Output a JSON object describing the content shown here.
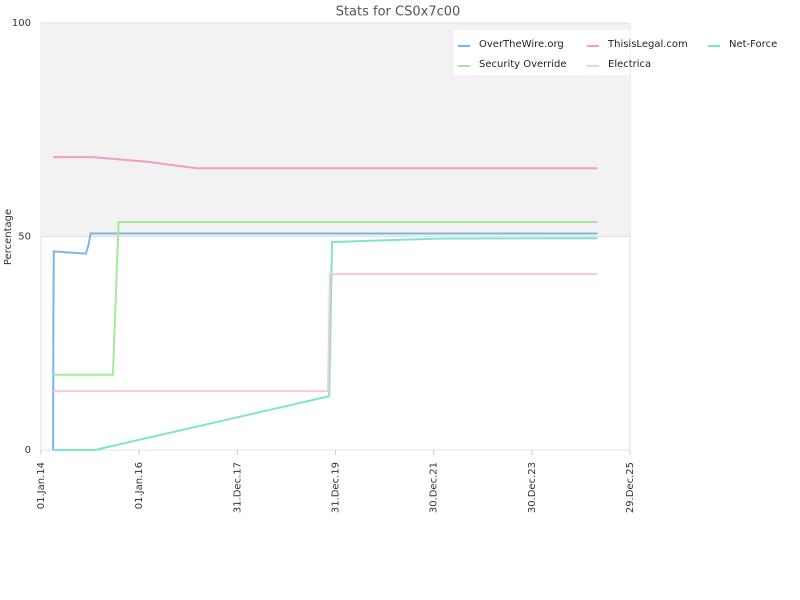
{
  "chart_data": {
    "type": "line",
    "title": "Stats for CS0x7c00",
    "y_label": "Percentage",
    "ylim": [
      0,
      100
    ],
    "yticks": [
      0,
      50,
      100
    ],
    "grid": true,
    "band": {
      "from": 50,
      "to": 100,
      "color": "#f2f2f2"
    },
    "xlim": [
      "2014-01-01",
      "2025-12-29"
    ],
    "xticks": [
      {
        "value": "2014-01-01",
        "label": "01.Jan.14"
      },
      {
        "value": "2016-01-01",
        "label": "01.Jan.16"
      },
      {
        "value": "2017-12-31",
        "label": "31.Dec.17"
      },
      {
        "value": "2019-12-31",
        "label": "31.Dec.19"
      },
      {
        "value": "2021-12-30",
        "label": "30.Dec.21"
      },
      {
        "value": "2023-12-30",
        "label": "30.Dec.23"
      },
      {
        "value": "2025-12-29",
        "label": "29.Dec.25"
      }
    ],
    "legend": "top-right",
    "series": [
      {
        "name": "OverTheWire.org",
        "color": "#7cb5ec",
        "x": [
          "2014-04-01",
          "2014-04-03",
          "2014-04-06",
          "2014-12-01",
          "2014-12-20",
          "2015-01-05",
          "2025-05-01"
        ],
        "values": [
          0,
          33,
          46.5,
          46,
          48,
          50.7,
          50.7
        ]
      },
      {
        "name": "ThisisLegal.com",
        "color": "#f19ec2",
        "x": [
          "2014-04-01",
          "2015-01-20",
          "2016-03-01",
          "2017-03-01",
          "2025-05-01"
        ],
        "values": [
          68.6,
          68.6,
          67.5,
          66,
          66
        ]
      },
      {
        "name": "Net-Force",
        "color": "#7ee5c9",
        "x": [
          "2014-04-01",
          "2015-02-06",
          "2019-11-14",
          "2019-12-05",
          "2020-06-01",
          "2022-02-01",
          "2025-05-01"
        ],
        "values": [
          0,
          0,
          12.6,
          48.7,
          48.9,
          49.5,
          49.6
        ]
      },
      {
        "name": "Security Override",
        "color": "#a2ea97",
        "x": [
          "2014-04-01",
          "2015-06-20",
          "2015-08-01",
          "2025-05-01"
        ],
        "values": [
          17.6,
          17.6,
          53.4,
          53.4
        ]
      },
      {
        "name": "Electrica",
        "color": "#f7c9d2",
        "x": [
          "2014-04-01",
          "2019-11-05",
          "2019-11-20",
          "2025-05-01"
        ],
        "values": [
          13.8,
          13.8,
          41.2,
          41.2
        ]
      }
    ]
  }
}
